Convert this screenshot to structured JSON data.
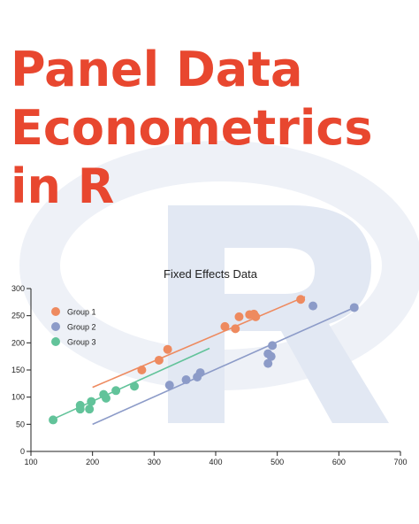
{
  "cover": {
    "title_lines": [
      "Panel Data",
      "Econometrics",
      "in R"
    ]
  },
  "colors": {
    "title": "#e8472f",
    "logo": "#c9d2e6",
    "group1": "#ee8a5f",
    "group2": "#8c9bc8",
    "group3": "#62c39a"
  },
  "chart_data": {
    "type": "scatter",
    "title": "Fixed Effects Data",
    "xlabel": "",
    "ylabel": "",
    "xlim": [
      100,
      700
    ],
    "ylim": [
      0,
      300
    ],
    "x_ticks": [
      100,
      200,
      300,
      400,
      500,
      600,
      700
    ],
    "y_ticks": [
      0,
      50,
      100,
      150,
      200,
      250,
      300
    ],
    "legend_position": "top-left",
    "series": [
      {
        "name": "Group 1",
        "color": "#ee8a5f",
        "points": [
          [
            280,
            150
          ],
          [
            308,
            168
          ],
          [
            322,
            188
          ],
          [
            415,
            230
          ],
          [
            432,
            226
          ],
          [
            438,
            248
          ],
          [
            455,
            252
          ],
          [
            462,
            253
          ],
          [
            465,
            248
          ],
          [
            538,
            280
          ]
        ],
        "trend": [
          [
            200,
            118
          ],
          [
            545,
            285
          ]
        ]
      },
      {
        "name": "Group 2",
        "color": "#8c9bc8",
        "points": [
          [
            325,
            122
          ],
          [
            352,
            132
          ],
          [
            370,
            137
          ],
          [
            375,
            145
          ],
          [
            485,
            180
          ],
          [
            485,
            162
          ],
          [
            490,
            175
          ],
          [
            492,
            195
          ],
          [
            558,
            268
          ],
          [
            625,
            265
          ]
        ],
        "trend": [
          [
            200,
            50
          ],
          [
            625,
            265
          ]
        ]
      },
      {
        "name": "Group 3",
        "color": "#62c39a",
        "points": [
          [
            136,
            58
          ],
          [
            180,
            78
          ],
          [
            180,
            85
          ],
          [
            195,
            78
          ],
          [
            198,
            92
          ],
          [
            218,
            105
          ],
          [
            222,
            98
          ],
          [
            238,
            112
          ],
          [
            268,
            120
          ]
        ],
        "trend": [
          [
            137,
            60
          ],
          [
            390,
            190
          ]
        ]
      }
    ]
  }
}
